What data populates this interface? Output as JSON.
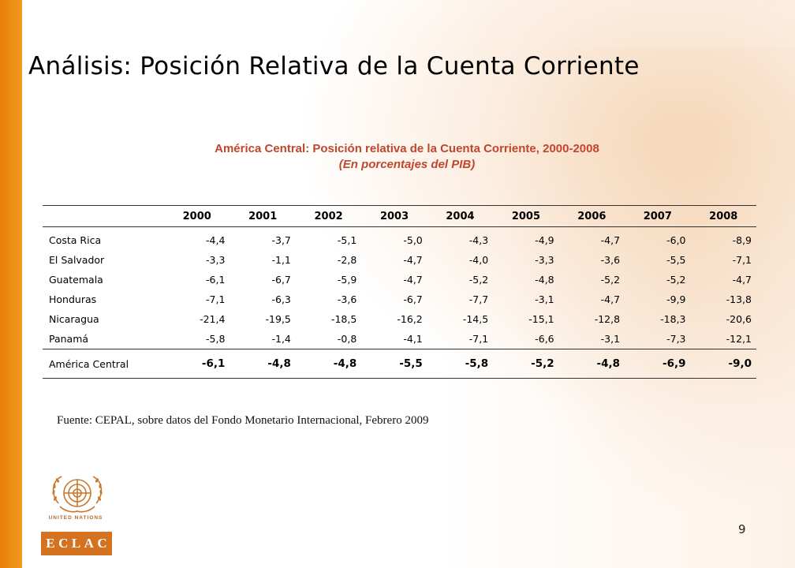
{
  "slide": {
    "title": "Análisis: Posición Relativa de la Cuenta Corriente",
    "page_number": "9",
    "source": "Fuente: CEPAL, sobre datos del Fondo Monetario Internacional, Febrero 2009"
  },
  "table": {
    "title": "América Central: Posición relativa de la Cuenta Corriente, 2000-2008",
    "subtitle": "(En porcentajes del PIB)",
    "years": [
      "2000",
      "2001",
      "2002",
      "2003",
      "2004",
      "2005",
      "2006",
      "2007",
      "2008"
    ],
    "rows": [
      {
        "country": "Costa Rica",
        "values": [
          "-4,4",
          "-3,7",
          "-5,1",
          "-5,0",
          "-4,3",
          "-4,9",
          "-4,7",
          "-6,0",
          "-8,9"
        ]
      },
      {
        "country": "El Salvador",
        "values": [
          "-3,3",
          "-1,1",
          "-2,8",
          "-4,7",
          "-4,0",
          "-3,3",
          "-3,6",
          "-5,5",
          "-7,1"
        ]
      },
      {
        "country": "Guatemala",
        "values": [
          "-6,1",
          "-6,7",
          "-5,9",
          "-4,7",
          "-5,2",
          "-4,8",
          "-5,2",
          "-5,2",
          "-4,7"
        ]
      },
      {
        "country": "Honduras",
        "values": [
          "-7,1",
          "-6,3",
          "-3,6",
          "-6,7",
          "-7,7",
          "-3,1",
          "-4,7",
          "-9,9",
          "-13,8"
        ]
      },
      {
        "country": "Nicaragua",
        "values": [
          "-21,4",
          "-19,5",
          "-18,5",
          "-16,2",
          "-14,5",
          "-15,1",
          "-12,8",
          "-18,3",
          "-20,6"
        ]
      },
      {
        "country": "Panamá",
        "values": [
          "-5,8",
          "-1,4",
          "-0,8",
          "-4,1",
          "-7,1",
          "-6,6",
          "-3,1",
          "-7,3",
          "-12,1"
        ]
      }
    ],
    "total": {
      "country": "América Central",
      "values": [
        "-6,1",
        "-4,8",
        "-4,8",
        "-5,5",
        "-5,8",
        "-5,2",
        "-4,8",
        "-6,9",
        "-9,0"
      ]
    }
  },
  "logo": {
    "org_name": "UNITED NATIONS",
    "acronym_letters": [
      "E",
      "C",
      "L",
      "A",
      "C"
    ],
    "icon": "un-emblem-icon"
  },
  "colors": {
    "accent_orange": "#e97e0a",
    "table_title": "#c0462d",
    "logo_orange": "#d4721f"
  }
}
